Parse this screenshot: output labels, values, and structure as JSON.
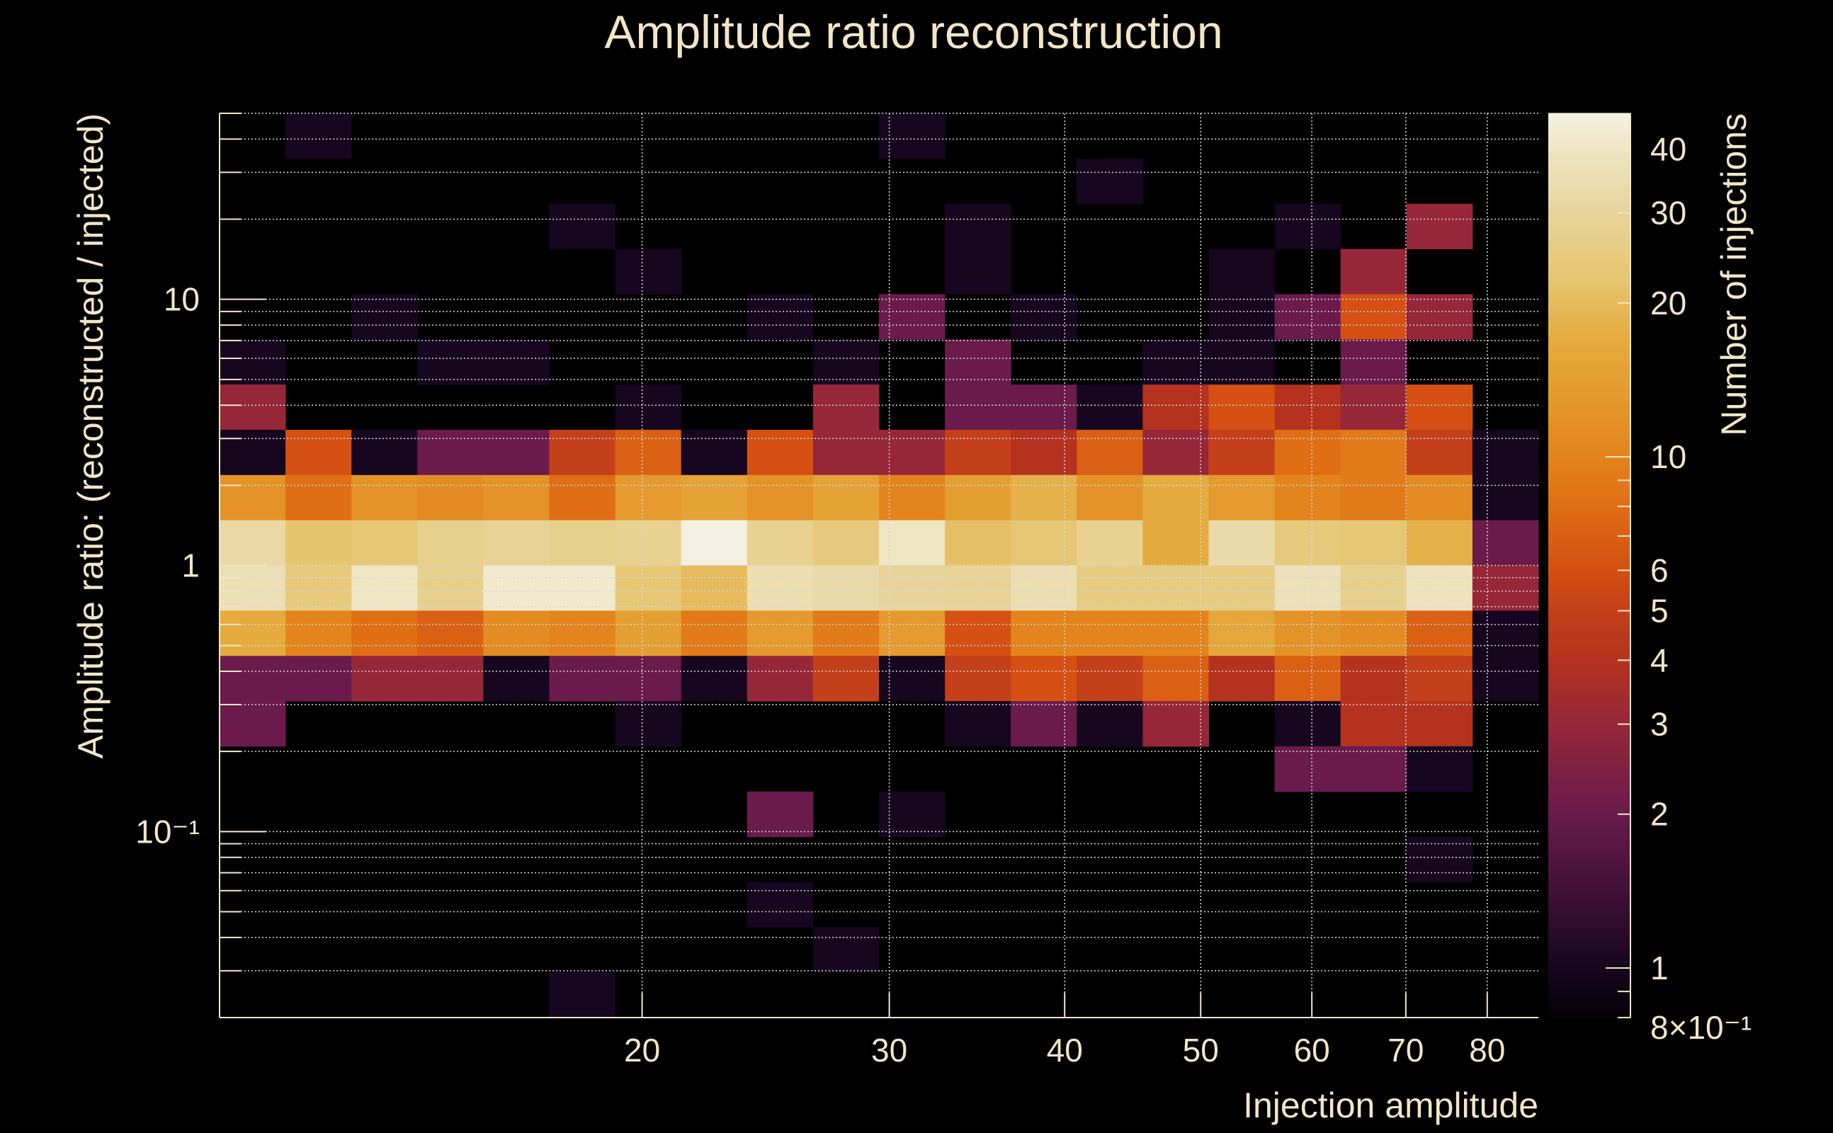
{
  "chart_data": {
    "type": "heatmap",
    "title": "Amplitude ratio reconstruction",
    "xlabel": "Injection amplitude",
    "ylabel": "Amplitude ratio: (reconstructed / injected)",
    "zlabel": "Number of injections",
    "x_scale": "log",
    "y_scale": "log",
    "z_scale": "log",
    "xlim": [
      10,
      87
    ],
    "ylim": [
      0.02,
      50
    ],
    "zlim": [
      0.8,
      47
    ],
    "nx": 20,
    "ny": 20,
    "grid": true,
    "x_ticks": [
      {
        "v": 20,
        "label": "20"
      },
      {
        "v": 30,
        "label": "30"
      },
      {
        "v": 40,
        "label": "40"
      },
      {
        "v": 50,
        "label": "50"
      },
      {
        "v": 60,
        "label": "60"
      },
      {
        "v": 70,
        "label": "70"
      },
      {
        "v": 80,
        "label": "80"
      }
    ],
    "y_ticks": [
      {
        "v": 10,
        "label": "10"
      },
      {
        "v": 1,
        "label": "1"
      },
      {
        "v": 0.1,
        "label": "10⁻¹"
      }
    ],
    "z_ticks": [
      {
        "v": 40,
        "label": "40"
      },
      {
        "v": 30,
        "label": "30"
      },
      {
        "v": 20,
        "label": "20"
      },
      {
        "v": 10,
        "label": "10"
      },
      {
        "v": 6,
        "label": "6"
      },
      {
        "v": 5,
        "label": "5"
      },
      {
        "v": 4,
        "label": "4"
      },
      {
        "v": 3,
        "label": "3"
      },
      {
        "v": 2,
        "label": "2"
      },
      {
        "v": 1,
        "label": "1"
      },
      {
        "v": 0.8,
        "label": "8×10⁻¹"
      }
    ],
    "z_by_row_from_top": [
      [
        0,
        1,
        0,
        0,
        0,
        0,
        0,
        0,
        0,
        0,
        1,
        0,
        0,
        0,
        0,
        0,
        0,
        0,
        0,
        0
      ],
      [
        0,
        0,
        0,
        0,
        0,
        0,
        0,
        0,
        0,
        0,
        0,
        0,
        0,
        1,
        0,
        0,
        0,
        0,
        0,
        0
      ],
      [
        0,
        0,
        0,
        0,
        0,
        1,
        0,
        0,
        0,
        0,
        0,
        1,
        0,
        0,
        0,
        0,
        1,
        0,
        3,
        0
      ],
      [
        0,
        0,
        0,
        0,
        0,
        0,
        1,
        0,
        0,
        0,
        0,
        1,
        0,
        0,
        0,
        1,
        0,
        3,
        0,
        0
      ],
      [
        0,
        0,
        1,
        0,
        0,
        0,
        0,
        0,
        1,
        0,
        2,
        0,
        1,
        0,
        0,
        1,
        2,
        6,
        3,
        0
      ],
      [
        1,
        0,
        0,
        1,
        1,
        0,
        0,
        0,
        0,
        1,
        0,
        2,
        0,
        0,
        1,
        1,
        0,
        2,
        0,
        0
      ],
      [
        3,
        0,
        0,
        0,
        0,
        0,
        1,
        0,
        0,
        3,
        0,
        2,
        2,
        1,
        4,
        6,
        4,
        3,
        6,
        0
      ],
      [
        1,
        6,
        1,
        2,
        2,
        5,
        7,
        1,
        6,
        3,
        3,
        5,
        4,
        7,
        3,
        5,
        8,
        9,
        5,
        1
      ],
      [
        12,
        8,
        12,
        11,
        12,
        8,
        13,
        15,
        12,
        15,
        10,
        14,
        18,
        12,
        17,
        13,
        10,
        9,
        11,
        1
      ],
      [
        32,
        22,
        23,
        27,
        29,
        27,
        28,
        46,
        28,
        24,
        40,
        21,
        23,
        28,
        17,
        33,
        24,
        23,
        18,
        2
      ],
      [
        36,
        24,
        40,
        27,
        42,
        42,
        23,
        20,
        35,
        33,
        30,
        29,
        35,
        25,
        25,
        25,
        37,
        27,
        38,
        3
      ],
      [
        17,
        10,
        8,
        7,
        11,
        10,
        14,
        9,
        13,
        9,
        13,
        6,
        10,
        10,
        10,
        16,
        12,
        11,
        7,
        1
      ],
      [
        2,
        2,
        3,
        3,
        1,
        2,
        2,
        1,
        3,
        5,
        1,
        5,
        6,
        5,
        7,
        4,
        7,
        4,
        5,
        1
      ],
      [
        2,
        0,
        0,
        0,
        0,
        0,
        1,
        0,
        0,
        0,
        0,
        1,
        2,
        1,
        3,
        0,
        1,
        4,
        4,
        0
      ],
      [
        0,
        0,
        0,
        0,
        0,
        0,
        0,
        0,
        0,
        0,
        0,
        0,
        0,
        0,
        0,
        0,
        2,
        2,
        1,
        0
      ],
      [
        0,
        0,
        0,
        0,
        0,
        0,
        0,
        0,
        2,
        0,
        1,
        0,
        0,
        0,
        0,
        0,
        0,
        0,
        0,
        0
      ],
      [
        0,
        0,
        0,
        0,
        0,
        0,
        0,
        0,
        0,
        0,
        0,
        0,
        0,
        0,
        0,
        0,
        0,
        0,
        1,
        0
      ],
      [
        0,
        0,
        0,
        0,
        0,
        0,
        0,
        0,
        1,
        0,
        0,
        0,
        0,
        0,
        0,
        0,
        0,
        0,
        0,
        0
      ],
      [
        0,
        0,
        0,
        0,
        0,
        0,
        0,
        0,
        0,
        1,
        0,
        0,
        0,
        0,
        0,
        0,
        0,
        0,
        0,
        0
      ],
      [
        0,
        0,
        0,
        0,
        0,
        1,
        0,
        0,
        0,
        0,
        0,
        0,
        0,
        0,
        0,
        0,
        0,
        0,
        0,
        0
      ]
    ],
    "palette": [
      {
        "v": 0.8,
        "color": "#050208"
      },
      {
        "v": 1,
        "color": "#170620"
      },
      {
        "v": 2,
        "color": "#6a1b4c"
      },
      {
        "v": 3,
        "color": "#962739"
      },
      {
        "v": 4,
        "color": "#b5321f"
      },
      {
        "v": 5,
        "color": "#c4401a"
      },
      {
        "v": 6,
        "color": "#d55012"
      },
      {
        "v": 8,
        "color": "#df6e15"
      },
      {
        "v": 10,
        "color": "#e3841c"
      },
      {
        "v": 13,
        "color": "#e49a2e"
      },
      {
        "v": 17,
        "color": "#e5ab3f"
      },
      {
        "v": 22,
        "color": "#e6c56f"
      },
      {
        "v": 30,
        "color": "#e8d49b"
      },
      {
        "v": 40,
        "color": "#efe6c4"
      },
      {
        "v": 47,
        "color": "#f5f2e6"
      }
    ],
    "text_color": "#f2e6c8",
    "background": "#000000"
  }
}
